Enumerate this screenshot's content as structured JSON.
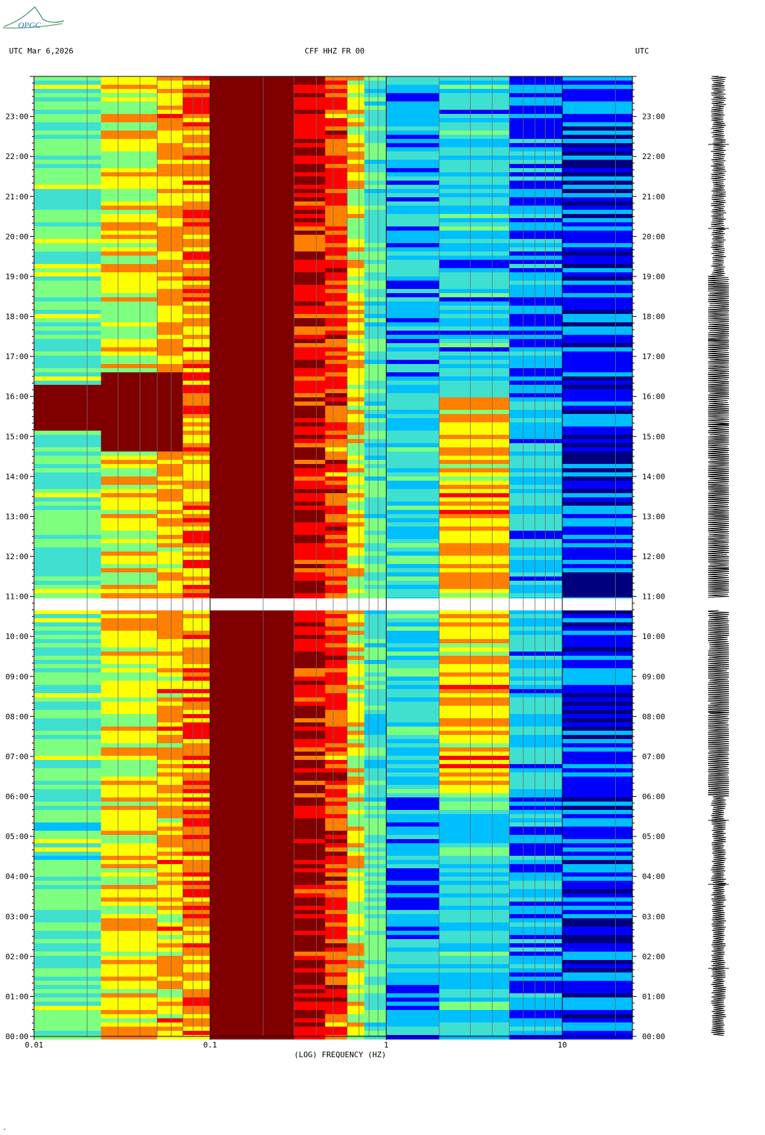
{
  "logo_text": "OPGC",
  "header": {
    "left": "UTC  Mar 6,2026",
    "center": "CFF HHZ FR 00",
    "right": "UTC"
  },
  "chart_data": {
    "type": "heatmap",
    "title": "CFF HHZ FR 00",
    "xlabel": "(LOG) FREQUENCY (HZ)",
    "xscale": "log",
    "xlim": [
      0.01,
      25
    ],
    "x_tick_labels": [
      "0.01",
      "0.1",
      "1",
      "10"
    ],
    "ylim_hours": [
      0,
      24
    ],
    "y_tick_labels": [
      "00:00",
      "01:00",
      "02:00",
      "03:00",
      "04:00",
      "05:00",
      "06:00",
      "07:00",
      "08:00",
      "09:00",
      "10:00",
      "11:00",
      "12:00",
      "13:00",
      "14:00",
      "15:00",
      "16:00",
      "17:00",
      "18:00",
      "19:00",
      "20:00",
      "21:00",
      "22:00",
      "23:00"
    ],
    "data_gap_hours": [
      10.65,
      10.95
    ],
    "colormap": [
      "#00007f",
      "#0000ff",
      "#00bfff",
      "#40e0d0",
      "#7fff7f",
      "#ffff00",
      "#ff7f00",
      "#ff0000",
      "#800000"
    ],
    "gridlines": true
  },
  "bottom_mark": "-"
}
